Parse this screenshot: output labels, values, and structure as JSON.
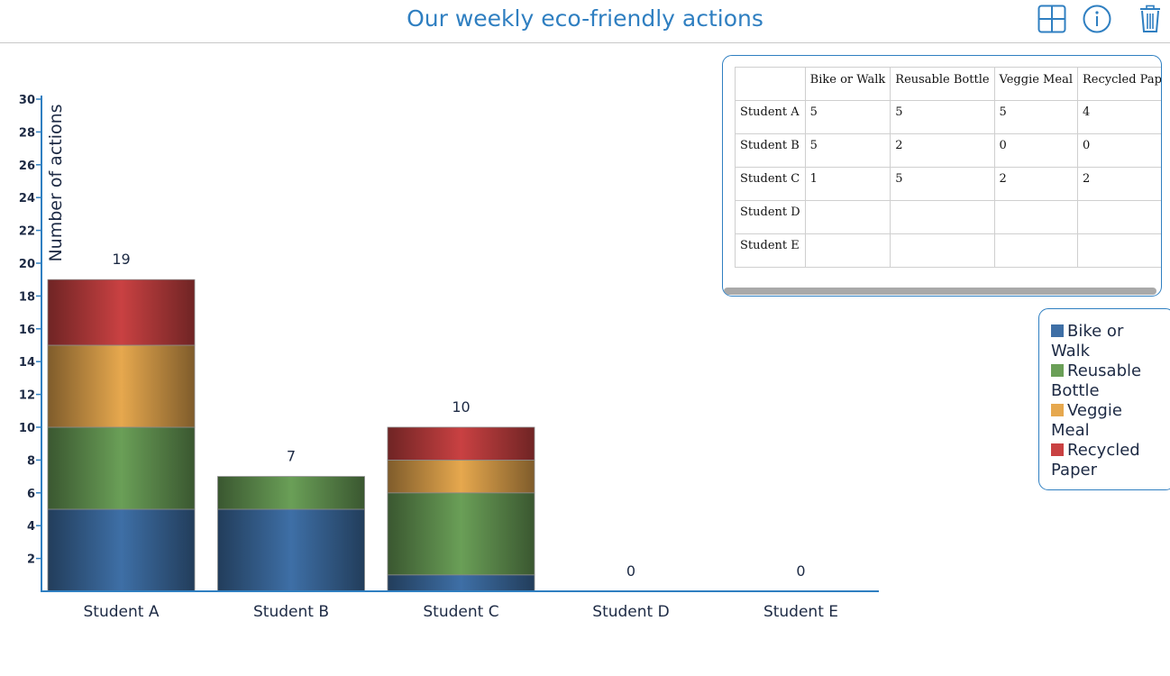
{
  "header": {
    "title": "Our weekly eco-friendly actions",
    "tools": [
      {
        "name": "layout-grid-icon"
      },
      {
        "name": "info-icon"
      },
      {
        "name": "trash-icon"
      }
    ]
  },
  "colors": {
    "accent": "#2f7fc1",
    "series": [
      "#3e6fa6",
      "#6a9f57",
      "#e6a84e",
      "#c94142"
    ]
  },
  "chart_data": {
    "type": "bar",
    "stacked": true,
    "categories": [
      "Student A",
      "Student B",
      "Student C",
      "Student D",
      "Student E"
    ],
    "series": [
      {
        "name": "Bike or Walk",
        "values": [
          5,
          5,
          1,
          0,
          0
        ]
      },
      {
        "name": "Reusable Bottle",
        "values": [
          5,
          2,
          5,
          0,
          0
        ]
      },
      {
        "name": "Veggie Meal",
        "values": [
          5,
          0,
          2,
          0,
          0
        ]
      },
      {
        "name": "Recycled Paper",
        "values": [
          4,
          0,
          2,
          0,
          0
        ]
      }
    ],
    "totals": [
      19,
      7,
      10,
      0,
      0
    ],
    "ylabel": "Number of actions",
    "xlabel": "",
    "ylim": [
      0,
      30
    ],
    "yticks": [
      2,
      4,
      6,
      8,
      10,
      12,
      14,
      16,
      18,
      20,
      22,
      24,
      26,
      28,
      30
    ],
    "grid": false,
    "legend_position": "right"
  },
  "table": {
    "headers": [
      "",
      "Bike or Walk",
      "Reusable Bottle",
      "Veggie Meal",
      "Recycled Paper"
    ],
    "rows": [
      [
        "Student A",
        "5",
        "5",
        "5",
        "4"
      ],
      [
        "Student B",
        "5",
        "2",
        "0",
        "0"
      ],
      [
        "Student C",
        "1",
        "5",
        "2",
        "2"
      ],
      [
        "Student D",
        "",
        "",
        "",
        ""
      ],
      [
        "Student E",
        "",
        "",
        "",
        ""
      ]
    ]
  },
  "legend": {
    "items": [
      {
        "label": "Bike or Walk"
      },
      {
        "label": "Reusable Bottle"
      },
      {
        "label": "Veggie Meal"
      },
      {
        "label": "Recycled Paper"
      }
    ]
  }
}
